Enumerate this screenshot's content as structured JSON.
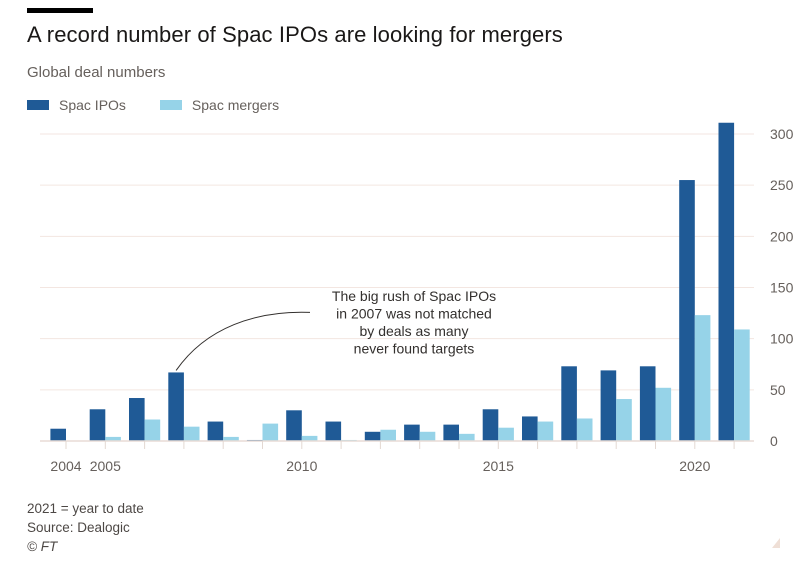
{
  "header": {
    "title": "A record number of Spac IPOs are looking for mergers",
    "subtitle": "Global deal numbers"
  },
  "legend": [
    {
      "label": "Spac IPOs",
      "color": "#1f5a96"
    },
    {
      "label": "Spac mergers",
      "color": "#96d3e8"
    }
  ],
  "annotation": {
    "lines": [
      "The big rush of Spac IPOs",
      "in 2007 was not matched",
      "by deals as many",
      "never found targets"
    ],
    "target_year": 2007
  },
  "footer": {
    "note": "2021 = year to date",
    "source": "Source: Dealogic",
    "copyright": "© FT"
  },
  "chart_data": {
    "type": "bar",
    "title": "A record number of Spac IPOs are looking for mergers",
    "subtitle": "Global deal numbers",
    "xlabel": "",
    "ylabel": "",
    "categories": [
      2004,
      2005,
      2006,
      2007,
      2008,
      2009,
      2010,
      2011,
      2012,
      2013,
      2014,
      2015,
      2016,
      2017,
      2018,
      2019,
      2020,
      2021
    ],
    "x_tick_labels": [
      "2004",
      "2005",
      "2010",
      "2015",
      "2020"
    ],
    "series": [
      {
        "name": "Spac IPOs",
        "color": "#1f5a96",
        "values": [
          12,
          31,
          42,
          67,
          19,
          1,
          30,
          19,
          9,
          16,
          16,
          31,
          24,
          73,
          69,
          73,
          255,
          311
        ]
      },
      {
        "name": "Spac mergers",
        "color": "#96d3e8",
        "values": [
          0,
          4,
          21,
          14,
          4,
          17,
          5,
          1,
          11,
          9,
          7,
          13,
          19,
          22,
          41,
          52,
          123,
          109
        ]
      }
    ],
    "ylim": [
      0,
      300
    ],
    "y_ticks": [
      0,
      50,
      100,
      150,
      200,
      250,
      300
    ],
    "y_axis_side": "right",
    "grid": true,
    "legend_position": "top-left"
  }
}
